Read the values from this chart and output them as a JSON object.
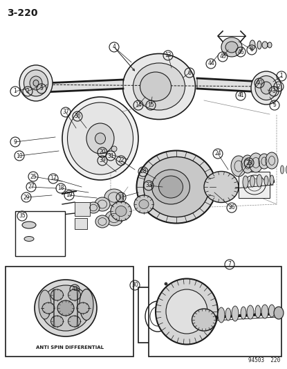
{
  "page_number": "3-220",
  "doc_number": "94503  220",
  "background_color": "#ffffff",
  "line_color": "#1a1a1a",
  "text_color": "#1a1a1a",
  "anti_spin_label": "ANTI SPIN DIFFERENTIAL",
  "fig_width": 4.15,
  "fig_height": 5.33,
  "dpi": 100
}
